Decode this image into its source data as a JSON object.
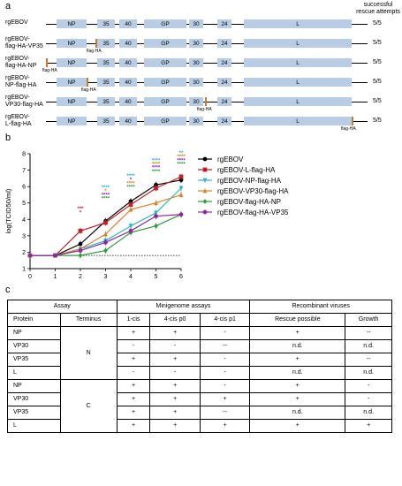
{
  "panel_a": {
    "label": "a",
    "header": "successful\nrescue attempts",
    "rows": [
      {
        "name": "rgEBOV",
        "rescue": "5/5",
        "tag_gene": "",
        "tag_label": ""
      },
      {
        "name": "rgEBOV-\nflag-HA-VP35",
        "rescue": "5/5",
        "tag_gene": "VP35",
        "tag_label": "flag-HA"
      },
      {
        "name": "rgEBOV-\nflag-HA-NP",
        "rescue": "5/5",
        "tag_gene": "NP",
        "tag_label": "flag-HA"
      },
      {
        "name": "rgEBOV-\nNP-flag-HA",
        "rescue": "5/5",
        "tag_gene": "NP",
        "tag_label": "flag-HA"
      },
      {
        "name": "rgEBOV-\nVP30-flag-HA",
        "rescue": "5/5",
        "tag_gene": "VP30",
        "tag_label": "flag-HA"
      },
      {
        "name": "rgEBOV-\nL-flag-HA",
        "rescue": "5/5",
        "tag_gene": "L",
        "tag_label": "flag-HA"
      }
    ],
    "genes": [
      "NP",
      "35",
      "40",
      "GP",
      "30",
      "24",
      "L"
    ],
    "colors": {
      "gene": "#b8cde3",
      "tag": "#c87a2e"
    }
  },
  "panel_b": {
    "label": "b",
    "chart_data": {
      "type": "line",
      "xlabel": "dpi",
      "ylabel": "log(TCID50/ml)",
      "x": [
        0,
        1,
        2,
        3,
        4,
        5,
        6
      ],
      "xlim": [
        0,
        6
      ],
      "ylim": [
        1,
        8
      ],
      "yticks": [
        1,
        2,
        3,
        4,
        5,
        6,
        7,
        8
      ],
      "detection_limit": 1.8,
      "legend_position": "right",
      "series": [
        {
          "name": "rgEBOV",
          "color": "#000000",
          "marker": "circle",
          "values": [
            1.8,
            1.8,
            2.5,
            3.9,
            5.1,
            6.1,
            6.4
          ]
        },
        {
          "name": "rgEBOV-L-flag-HA",
          "color": "#c0202a",
          "marker": "square",
          "values": [
            1.8,
            1.8,
            3.3,
            3.8,
            4.9,
            5.9,
            6.6
          ]
        },
        {
          "name": "rgEBOV-NP-flag-HA",
          "color": "#2ab8c8",
          "marker": "triangle-down",
          "values": [
            1.8,
            1.8,
            2.2,
            2.7,
            3.6,
            4.4,
            5.9
          ]
        },
        {
          "name": "rgEBOV-VP30-flag-HA",
          "color": "#d9822b",
          "marker": "triangle-up",
          "values": [
            1.8,
            1.8,
            2.2,
            3.1,
            4.6,
            5.0,
            5.5
          ]
        },
        {
          "name": "rgEBOV-flag-HA-NP",
          "color": "#2c9e3a",
          "marker": "diamond",
          "values": [
            1.8,
            1.8,
            1.8,
            2.1,
            3.2,
            3.6,
            4.3
          ]
        },
        {
          "name": "rgEBOV-flag-HA-VP35",
          "color": "#8b2a9e",
          "marker": "circle",
          "values": [
            1.8,
            1.8,
            2.1,
            2.6,
            3.3,
            4.2,
            4.3
          ]
        }
      ],
      "significance": [
        {
          "x": 2,
          "rows": [
            {
              "text": "***",
              "color": "#c0202a"
            },
            {
              "text": "*",
              "color": "#c0202a"
            }
          ]
        },
        {
          "x": 3,
          "rows": [
            {
              "text": "****",
              "color": "#2ab8c8"
            },
            {
              "text": "*",
              "color": "#d9822b"
            },
            {
              "text": "****",
              "color": "#8b2a9e"
            },
            {
              "text": "****",
              "color": "#2c9e3a"
            }
          ]
        },
        {
          "x": 4,
          "rows": [
            {
              "text": "****",
              "color": "#2ab8c8"
            },
            {
              "text": "*",
              "color": "#8b2a9e"
            },
            {
              "text": "****",
              "color": "#d9822b"
            },
            {
              "text": "****",
              "color": "#2c9e3a"
            }
          ]
        },
        {
          "x": 5,
          "rows": [
            {
              "text": "****",
              "color": "#2ab8c8"
            },
            {
              "text": "****",
              "color": "#d9822b"
            },
            {
              "text": "****",
              "color": "#8b2a9e"
            },
            {
              "text": "****",
              "color": "#2c9e3a"
            }
          ]
        },
        {
          "x": 6,
          "rows": [
            {
              "text": "**",
              "color": "#2ab8c8"
            },
            {
              "text": "****",
              "color": "#d9822b"
            },
            {
              "text": "****",
              "color": "#8b2a9e"
            },
            {
              "text": "****",
              "color": "#2c9e3a"
            }
          ]
        }
      ]
    }
  },
  "panel_c": {
    "label": "c",
    "headers": {
      "assay": "Assay",
      "minigenome": "Minigenome assays",
      "recombinant": "Recombinant viruses",
      "protein": "Protein",
      "terminus": "Terminus",
      "cis1": "1-cis",
      "cis4p0": "4-cis p0",
      "cis4p1": "4-cis p1",
      "rescue": "Rescue possible",
      "growth": "Growth"
    },
    "groups": [
      {
        "terminus": "N",
        "rows": [
          {
            "protein": "NP",
            "cells": [
              "+",
              "+",
              "-",
              "+",
              "--"
            ]
          },
          {
            "protein": "VP30",
            "cells": [
              "-",
              "-",
              "--",
              "n.d.",
              "n.d."
            ]
          },
          {
            "protein": "VP35",
            "cells": [
              "+",
              "+",
              "-",
              "+",
              "--"
            ]
          },
          {
            "protein": "L",
            "cells": [
              "-",
              "-",
              "-",
              "n.d.",
              "n.d."
            ]
          }
        ]
      },
      {
        "terminus": "C",
        "rows": [
          {
            "protein": "NP",
            "cells": [
              "+",
              "+",
              "-",
              "+",
              "-"
            ]
          },
          {
            "protein": "VP30",
            "cells": [
              "+",
              "+",
              "+",
              "+",
              "-"
            ]
          },
          {
            "protein": "VP35",
            "cells": [
              "+",
              "+",
              "--",
              "n.d.",
              "n.d."
            ]
          },
          {
            "protein": "L",
            "cells": [
              "+",
              "+",
              "+",
              "+",
              "+"
            ]
          }
        ]
      }
    ]
  }
}
